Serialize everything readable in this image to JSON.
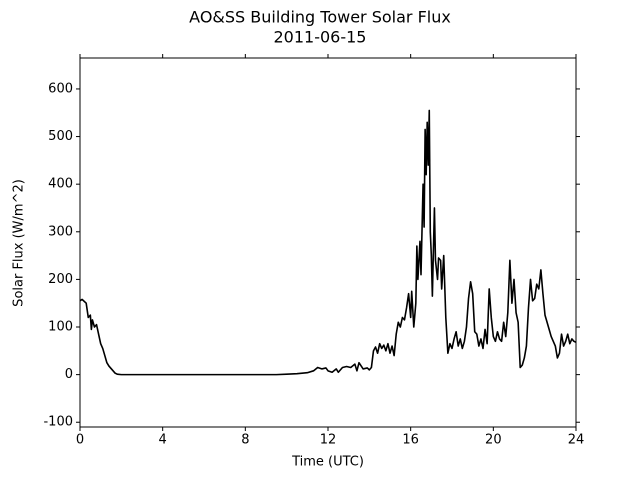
{
  "chart_data": {
    "type": "line",
    "title": "AO&SS Building Tower Solar Flux",
    "subtitle": "2011-06-15",
    "xlabel": "Time (UTC)",
    "ylabel": "Solar Flux (W/m^2)",
    "xlim": [
      0,
      24
    ],
    "xticks": [
      0,
      4,
      8,
      12,
      16,
      20,
      24
    ],
    "ylim": [
      -110,
      665
    ],
    "yticks": [
      -100,
      0,
      100,
      200,
      300,
      400,
      500,
      600
    ],
    "color": "#000000",
    "x": [
      0,
      0.1,
      0.3,
      0.4,
      0.5,
      0.55,
      0.6,
      0.7,
      0.8,
      0.9,
      1.0,
      1.1,
      1.2,
      1.3,
      1.4,
      1.5,
      1.6,
      1.7,
      1.8,
      2.0,
      4,
      8,
      9.5,
      10,
      10.5,
      11,
      11.3,
      11.5,
      11.7,
      11.9,
      12.0,
      12.2,
      12.4,
      12.5,
      12.7,
      12.9,
      13.1,
      13.3,
      13.4,
      13.5,
      13.7,
      13.9,
      14.0,
      14.1,
      14.2,
      14.3,
      14.4,
      14.5,
      14.6,
      14.7,
      14.8,
      14.9,
      15.0,
      15.1,
      15.2,
      15.3,
      15.4,
      15.5,
      15.6,
      15.7,
      15.8,
      15.9,
      16.0,
      16.05,
      16.15,
      16.25,
      16.3,
      16.35,
      16.45,
      16.5,
      16.6,
      16.65,
      16.7,
      16.75,
      16.8,
      16.85,
      16.9,
      16.95,
      17.0,
      17.05,
      17.1,
      17.15,
      17.2,
      17.3,
      17.35,
      17.45,
      17.5,
      17.6,
      17.7,
      17.8,
      17.9,
      18.0,
      18.1,
      18.2,
      18.3,
      18.4,
      18.5,
      18.6,
      18.7,
      18.8,
      18.9,
      19.0,
      19.1,
      19.2,
      19.3,
      19.4,
      19.5,
      19.6,
      19.7,
      19.8,
      19.9,
      20.0,
      20.1,
      20.2,
      20.3,
      20.4,
      20.5,
      20.6,
      20.7,
      20.8,
      20.9,
      21.0,
      21.1,
      21.2,
      21.3,
      21.4,
      21.5,
      21.6,
      21.7,
      21.8,
      21.9,
      22.0,
      22.1,
      22.2,
      22.3,
      22.4,
      22.5,
      22.6,
      22.7,
      22.8,
      22.9,
      23.0,
      23.1,
      23.2,
      23.3,
      23.4,
      23.5,
      23.6,
      23.7,
      23.8,
      23.9,
      24.0
    ],
    "values": [
      155,
      158,
      150,
      120,
      125,
      95,
      115,
      100,
      105,
      85,
      65,
      55,
      40,
      25,
      18,
      13,
      8,
      3,
      1,
      0,
      0,
      0,
      0,
      1,
      2,
      4,
      8,
      15,
      12,
      14,
      8,
      5,
      12,
      5,
      15,
      17,
      15,
      22,
      8,
      25,
      12,
      14,
      10,
      15,
      50,
      58,
      45,
      65,
      55,
      62,
      50,
      65,
      45,
      60,
      40,
      85,
      110,
      100,
      120,
      115,
      140,
      170,
      120,
      175,
      100,
      150,
      270,
      200,
      280,
      210,
      400,
      310,
      515,
      420,
      530,
      440,
      555,
      300,
      250,
      165,
      260,
      350,
      240,
      200,
      245,
      240,
      180,
      250,
      120,
      45,
      65,
      55,
      75,
      90,
      60,
      75,
      55,
      70,
      100,
      160,
      195,
      170,
      90,
      85,
      60,
      75,
      55,
      95,
      65,
      180,
      120,
      80,
      70,
      90,
      75,
      70,
      110,
      80,
      130,
      240,
      150,
      200,
      130,
      110,
      15,
      20,
      35,
      60,
      140,
      200,
      155,
      160,
      190,
      180,
      220,
      170,
      125,
      110,
      95,
      80,
      70,
      60,
      35,
      45,
      85,
      60,
      70,
      85,
      65,
      75,
      70,
      68
    ]
  }
}
